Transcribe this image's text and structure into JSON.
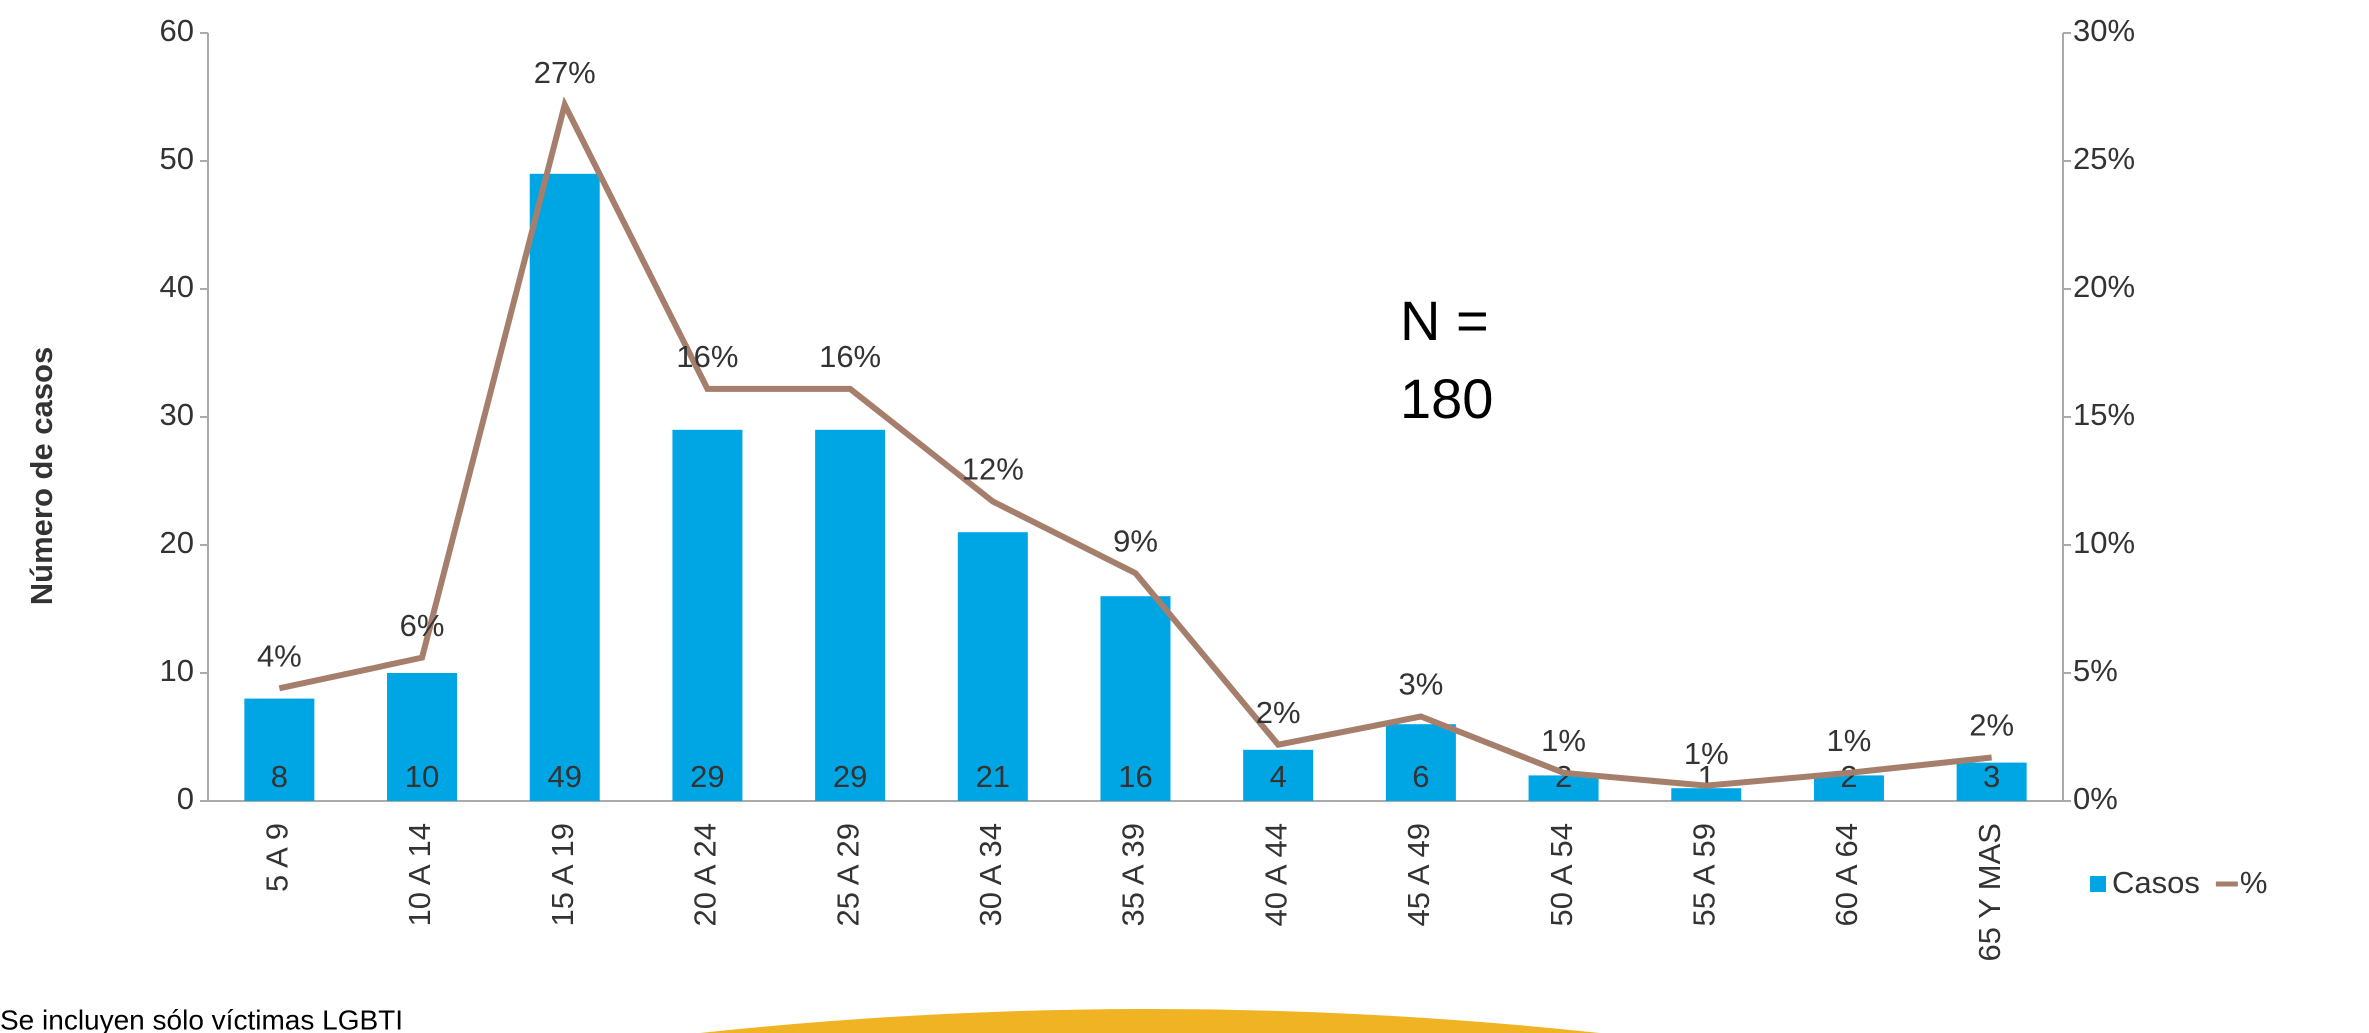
{
  "chart_data": {
    "type": "bar_line",
    "y_axis_label": "Número de casos",
    "categories": [
      "5 A 9",
      "10 A 14",
      "15 A 19",
      "20 A 24",
      "25 A 29",
      "30 A 34",
      "35 A 39",
      "40 A 44",
      "45 A 49",
      "50 A 54",
      "55 A 59",
      "60 A 64",
      "65 Y MAS"
    ],
    "series": [
      {
        "name": "Casos",
        "type": "bar",
        "color": "#00a6e4",
        "values": [
          8,
          10,
          49,
          29,
          29,
          21,
          16,
          4,
          6,
          2,
          1,
          2,
          3
        ]
      },
      {
        "name": "%",
        "type": "line",
        "axis": "y2",
        "color": "#a57f6c",
        "values": [
          4.4,
          5.6,
          27.2,
          16.1,
          16.1,
          11.7,
          8.9,
          2.2,
          3.3,
          1.1,
          0.6,
          1.1,
          1.7
        ],
        "value_labels": [
          "4%",
          "6%",
          "27%",
          "16%",
          "16%",
          "12%",
          "9%",
          "2%",
          "3%",
          "1%",
          "1%",
          "1%",
          "2%"
        ]
      }
    ],
    "ylim": [
      0,
      60
    ],
    "yticks": [
      0,
      10,
      20,
      30,
      40,
      50,
      60
    ],
    "y2lim": [
      0,
      30
    ],
    "y2ticks": [
      {
        "value": 0,
        "label": "0%"
      },
      {
        "value": 5,
        "label": "5%"
      },
      {
        "value": 10,
        "label": "10%"
      },
      {
        "value": 15,
        "label": "15%"
      },
      {
        "value": 20,
        "label": "20%"
      },
      {
        "value": 25,
        "label": "25%"
      },
      {
        "value": 30,
        "label": "30%"
      }
    ],
    "annotation": [
      "N =",
      "180"
    ],
    "footnote": "Se incluyen sólo víctimas LGBTI",
    "legend": "right"
  }
}
